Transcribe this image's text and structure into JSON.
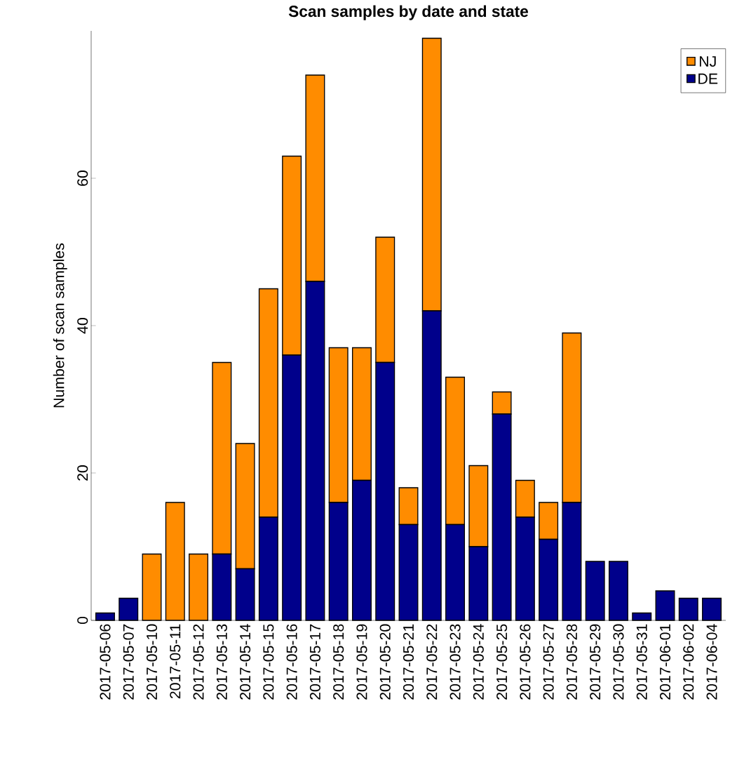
{
  "chart_data": {
    "type": "bar",
    "title": "Scan samples by date and state",
    "ylabel": "Number of scan samples",
    "categories": [
      "2017-05-06",
      "2017-05-07",
      "2017-05-10",
      "2017-05-11",
      "2017-05-12",
      "2017-05-13",
      "2017-05-14",
      "2017-05-15",
      "2017-05-16",
      "2017-05-17",
      "2017-05-18",
      "2017-05-19",
      "2017-05-20",
      "2017-05-21",
      "2017-05-22",
      "2017-05-23",
      "2017-05-24",
      "2017-05-25",
      "2017-05-26",
      "2017-05-27",
      "2017-05-28",
      "2017-05-29",
      "2017-05-30",
      "2017-05-31",
      "2017-06-01",
      "2017-06-02",
      "2017-06-04"
    ],
    "stacked": true,
    "series": [
      {
        "name": "DE",
        "color": "#00008b",
        "values": [
          1,
          3,
          0,
          0,
          0,
          9,
          7,
          14,
          36,
          46,
          16,
          19,
          35,
          13,
          42,
          13,
          10,
          28,
          14,
          11,
          16,
          8,
          8,
          1,
          4,
          3,
          3
        ]
      },
      {
        "name": "NJ",
        "color": "#ff8c00",
        "values": [
          0,
          0,
          9,
          16,
          9,
          26,
          17,
          31,
          27,
          28,
          21,
          18,
          17,
          5,
          37,
          20,
          11,
          3,
          5,
          5,
          23,
          0,
          0,
          0,
          0,
          0,
          0
        ]
      }
    ],
    "ylim": [
      0,
      80
    ],
    "yticks": [
      0,
      20,
      40,
      60
    ],
    "grid": false,
    "legend": "top right"
  }
}
